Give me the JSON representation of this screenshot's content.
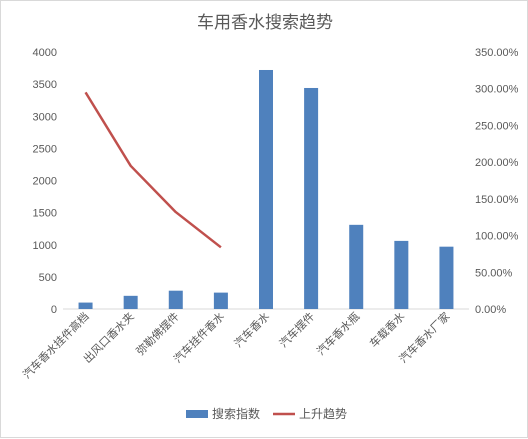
{
  "chart_data": {
    "type": "bar",
    "title": "车用香水搜索趋势",
    "categories": [
      "汽车香水挂件高档",
      "出风口香水夹",
      "弥勒佛摆件",
      "汽车挂件香水",
      "汽车香水",
      "汽车摆件",
      "汽车香水瓶",
      "车载香水",
      "汽车香水厂家"
    ],
    "series": [
      {
        "name": "搜索指数",
        "type": "bar",
        "axis": "left",
        "color": "#4f81bd",
        "values": [
          100,
          205,
          285,
          255,
          3720,
          3440,
          1310,
          1060,
          970
        ]
      },
      {
        "name": "上升趋势",
        "type": "line",
        "axis": "right",
        "color": "#c0504d",
        "values": [
          2.95,
          1.95,
          1.32,
          0.84,
          null,
          null,
          null,
          null,
          null
        ]
      }
    ],
    "y_left": {
      "min": 0,
      "max": 4000,
      "step": 500
    },
    "y_right": {
      "min": 0,
      "max": 3.5,
      "step": 0.5,
      "format": "percent"
    },
    "legend": "bottom",
    "grid": false
  }
}
